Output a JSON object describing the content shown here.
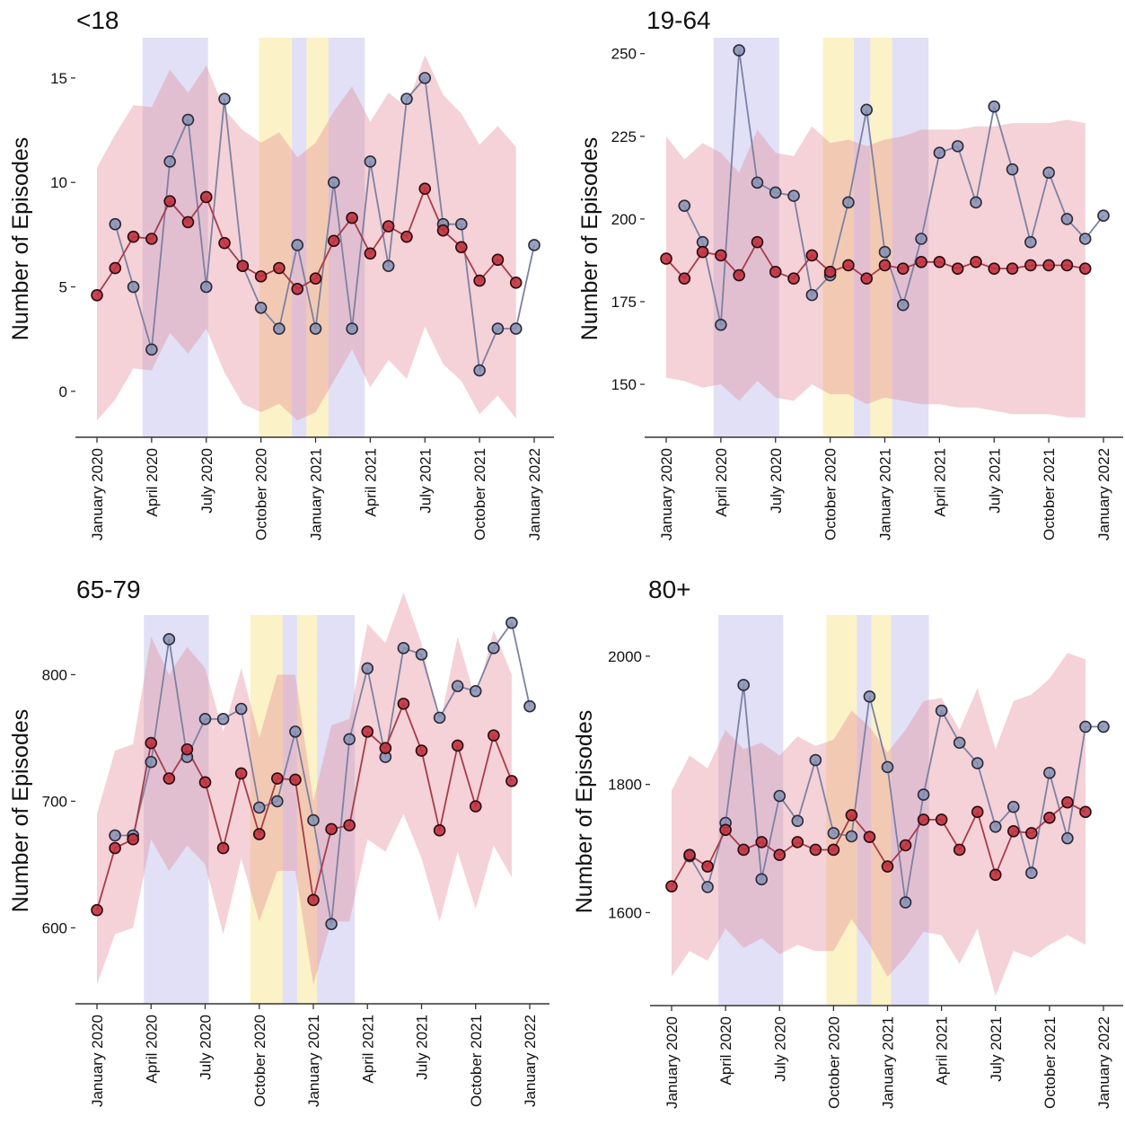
{
  "colors": {
    "lockdown_shade": "#c9c6ef",
    "intermediate_shade": "#fbedb4",
    "ribbon": "#e38a97",
    "observed_line": "#7d81a3",
    "observed_point": "#8691b3",
    "expected_line": "#a83b4a",
    "expected_point": "#c0323f"
  },
  "chart_data": [
    {
      "type": "line",
      "title": "<18",
      "ylabel": "Number of Episodes",
      "xlabel": "",
      "ylim": [
        -2.2,
        16.8
      ],
      "yticks": [
        0,
        5,
        10,
        15
      ],
      "x_tick_labels": [
        "January 2020",
        "April 2020",
        "July 2020",
        "October 2020",
        "January 2021",
        "April 2021",
        "July 2021",
        "October 2021",
        "January 2022"
      ],
      "x_tick_months": [
        0,
        3,
        6,
        9,
        12,
        15,
        18,
        21,
        24
      ],
      "shaded_periods": [
        {
          "kind": "lockdown",
          "start": 2.5,
          "end": 6.1
        },
        {
          "kind": "intermediate",
          "start": 8.9,
          "end": 10.7
        },
        {
          "kind": "lockdown",
          "start": 10.7,
          "end": 11.5
        },
        {
          "kind": "intermediate",
          "start": 11.5,
          "end": 12.7
        },
        {
          "kind": "lockdown",
          "start": 12.7,
          "end": 14.7
        }
      ],
      "grid": false,
      "legend": "none",
      "series": [
        {
          "role": "observed",
          "x": [
            1,
            2,
            3,
            4,
            5,
            6,
            7,
            8,
            9,
            10,
            11,
            12,
            13,
            14,
            15,
            16,
            17,
            18,
            19,
            20,
            21,
            22,
            23,
            24
          ],
          "values": [
            8,
            5,
            2,
            11,
            13,
            5,
            14,
            6,
            4,
            3,
            7,
            3,
            10,
            3,
            11,
            6,
            14,
            15,
            8,
            8,
            1,
            3,
            3,
            7
          ]
        },
        {
          "role": "expected",
          "x": [
            0,
            1,
            2,
            3,
            4,
            5,
            6,
            7,
            8,
            9,
            10,
            11,
            12,
            13,
            14,
            15,
            16,
            17,
            18,
            19,
            20,
            21,
            22,
            23
          ],
          "values": [
            4.6,
            5.9,
            7.4,
            7.3,
            9.1,
            8.1,
            9.3,
            7.1,
            6.0,
            5.5,
            5.9,
            4.9,
            5.4,
            7.2,
            8.3,
            6.6,
            7.9,
            7.4,
            9.7,
            7.7,
            6.9,
            5.3,
            6.3,
            5.2
          ]
        }
      ],
      "ribbon": {
        "x": [
          0,
          1,
          2,
          3,
          4,
          5,
          6,
          7,
          8,
          9,
          10,
          11,
          12,
          13,
          14,
          15,
          16,
          17,
          18,
          19,
          20,
          21,
          22,
          23
        ],
        "lower": [
          -1.4,
          -0.4,
          1.1,
          1.0,
          2.8,
          1.8,
          3.0,
          0.9,
          -0.6,
          -1.0,
          -0.6,
          -1.4,
          -1.0,
          0.5,
          2.0,
          0.2,
          1.5,
          0.6,
          3.1,
          1.3,
          0.5,
          -1.1,
          -0.2,
          -1.3
        ],
        "upper": [
          10.7,
          12.3,
          13.7,
          13.6,
          15.4,
          14.3,
          15.6,
          13.5,
          12.5,
          11.9,
          12.4,
          11.2,
          11.9,
          13.4,
          14.6,
          12.9,
          14.3,
          13.6,
          16.1,
          14.2,
          13.3,
          11.8,
          12.7,
          11.7
        ]
      }
    },
    {
      "type": "line",
      "title": "19-64",
      "ylabel": "Number of Episodes",
      "xlabel": "",
      "ylim": [
        134,
        254
      ],
      "yticks": [
        150,
        175,
        200,
        225,
        250
      ],
      "x_tick_labels": [
        "January 2020",
        "April 2020",
        "July 2020",
        "October 2020",
        "January 2021",
        "April 2021",
        "July 2021",
        "October 2021",
        "January 2022"
      ],
      "x_tick_months": [
        0,
        3,
        6,
        9,
        12,
        15,
        18,
        21,
        24
      ],
      "shaded_periods": [
        {
          "kind": "lockdown",
          "start": 2.6,
          "end": 6.2
        },
        {
          "kind": "intermediate",
          "start": 8.6,
          "end": 10.3
        },
        {
          "kind": "lockdown",
          "start": 10.3,
          "end": 11.2
        },
        {
          "kind": "intermediate",
          "start": 11.2,
          "end": 12.4
        },
        {
          "kind": "lockdown",
          "start": 12.4,
          "end": 14.4
        }
      ],
      "grid": false,
      "legend": "none",
      "series": [
        {
          "role": "observed",
          "x": [
            1,
            2,
            3,
            4,
            5,
            6,
            7,
            8,
            9,
            10,
            11,
            12,
            13,
            14,
            15,
            16,
            17,
            18,
            19,
            20,
            21,
            22,
            23,
            24
          ],
          "values": [
            204,
            193,
            168,
            251,
            211,
            208,
            207,
            177,
            183,
            205,
            233,
            190,
            174,
            194,
            220,
            222,
            205,
            234,
            215,
            193,
            214,
            200,
            194,
            201
          ]
        },
        {
          "role": "expected",
          "x": [
            0,
            1,
            2,
            3,
            4,
            5,
            6,
            7,
            8,
            9,
            10,
            11,
            12,
            13,
            14,
            15,
            16,
            17,
            18,
            19,
            20,
            21,
            22,
            23
          ],
          "values": [
            188,
            182,
            190,
            189,
            183,
            193,
            184,
            182,
            189,
            184,
            186,
            182,
            186,
            185,
            187,
            187,
            185,
            187,
            185,
            185,
            186,
            186,
            186,
            185
          ]
        }
      ],
      "ribbon": {
        "x": [
          0,
          1,
          2,
          3,
          4,
          5,
          6,
          7,
          8,
          9,
          10,
          11,
          12,
          13,
          14,
          15,
          16,
          17,
          18,
          19,
          20,
          21,
          22,
          23
        ],
        "lower": [
          152,
          151,
          149,
          150,
          145,
          151,
          146,
          145,
          150,
          147,
          147,
          144,
          146,
          145,
          144,
          144,
          143,
          143,
          142,
          141,
          141,
          141,
          140,
          140
        ],
        "upper": [
          225,
          218,
          223,
          220,
          214,
          227,
          220,
          219,
          228,
          223,
          224,
          222,
          224,
          225,
          227,
          227,
          227,
          228,
          228,
          229,
          229,
          229,
          230,
          229
        ]
      }
    },
    {
      "type": "line",
      "title": "65-79",
      "ylabel": "Number of Episodes",
      "xlabel": "",
      "ylim": [
        540,
        845
      ],
      "yticks": [
        600,
        700,
        800
      ],
      "x_tick_labels": [
        "January 2020",
        "April 2020",
        "July 2020",
        "October 2020",
        "January 2021",
        "April 2021",
        "July 2021",
        "October 2021",
        "January 2022"
      ],
      "x_tick_months": [
        0,
        3,
        6,
        9,
        12,
        15,
        18,
        21,
        24
      ],
      "shaded_periods": [
        {
          "kind": "lockdown",
          "start": 2.6,
          "end": 6.2
        },
        {
          "kind": "intermediate",
          "start": 8.5,
          "end": 10.3
        },
        {
          "kind": "lockdown",
          "start": 10.3,
          "end": 11.1
        },
        {
          "kind": "intermediate",
          "start": 11.1,
          "end": 12.2
        },
        {
          "kind": "lockdown",
          "start": 12.2,
          "end": 14.3
        }
      ],
      "grid": false,
      "legend": "none",
      "series": [
        {
          "role": "observed",
          "x": [
            1,
            2,
            3,
            4,
            5,
            6,
            7,
            8,
            9,
            10,
            11,
            12,
            13,
            14,
            15,
            16,
            17,
            18,
            19,
            20,
            21,
            22,
            23,
            24
          ],
          "values": [
            673,
            673,
            731,
            828,
            735,
            765,
            765,
            773,
            695,
            700,
            755,
            685,
            603,
            749,
            805,
            735,
            821,
            816,
            766,
            791,
            787,
            821,
            841,
            775
          ]
        },
        {
          "role": "expected",
          "x": [
            0,
            1,
            2,
            3,
            4,
            5,
            6,
            7,
            8,
            9,
            10,
            11,
            12,
            13,
            14,
            15,
            16,
            17,
            18,
            19,
            20,
            21,
            22,
            23
          ],
          "values": [
            614,
            663,
            670,
            746,
            718,
            741,
            715,
            663,
            722,
            674,
            718,
            717,
            622,
            678,
            681,
            755,
            742,
            777,
            740,
            677,
            744,
            696,
            752,
            716
          ]
        }
      ],
      "ribbon": {
        "x": [
          0,
          1,
          2,
          3,
          4,
          5,
          6,
          7,
          8,
          9,
          10,
          11,
          12,
          13,
          14,
          15,
          16,
          17,
          18,
          19,
          20,
          21,
          22,
          23
        ],
        "lower": [
          555,
          595,
          600,
          670,
          645,
          665,
          650,
          595,
          655,
          605,
          645,
          645,
          555,
          605,
          605,
          670,
          660,
          690,
          655,
          605,
          660,
          615,
          665,
          640
        ],
        "upper": [
          690,
          740,
          745,
          830,
          800,
          822,
          805,
          755,
          805,
          750,
          800,
          800,
          700,
          760,
          765,
          840,
          825,
          865,
          825,
          760,
          830,
          780,
          835,
          800
        ]
      }
    },
    {
      "type": "line",
      "title": "80+",
      "ylabel": "Number of Episodes",
      "xlabel": "",
      "ylim": [
        1455,
        2060
      ],
      "yticks": [
        1600,
        1800,
        2000
      ],
      "x_tick_labels": [
        "January 2020",
        "April 2020",
        "July 2020",
        "October 2020",
        "January 2021",
        "April 2021",
        "July 2021",
        "October 2021",
        "January 2022"
      ],
      "x_tick_months": [
        0,
        3,
        6,
        9,
        12,
        15,
        18,
        21,
        24
      ],
      "shaded_periods": [
        {
          "kind": "lockdown",
          "start": 2.6,
          "end": 6.2
        },
        {
          "kind": "intermediate",
          "start": 8.6,
          "end": 10.3
        },
        {
          "kind": "lockdown",
          "start": 10.3,
          "end": 11.1
        },
        {
          "kind": "intermediate",
          "start": 11.1,
          "end": 12.2
        },
        {
          "kind": "lockdown",
          "start": 12.2,
          "end": 14.3
        }
      ],
      "grid": false,
      "legend": "none",
      "series": [
        {
          "role": "observed",
          "x": [
            1,
            2,
            3,
            4,
            5,
            6,
            7,
            8,
            9,
            10,
            11,
            12,
            13,
            14,
            15,
            16,
            17,
            18,
            19,
            20,
            21,
            22,
            23,
            24
          ],
          "values": [
            1688,
            1640,
            1740,
            1955,
            1652,
            1782,
            1743,
            1838,
            1724,
            1719,
            1937,
            1827,
            1616,
            1784,
            1915,
            1865,
            1833,
            1734,
            1765,
            1662,
            1818,
            1716,
            1890,
            1890
          ]
        },
        {
          "role": "expected",
          "x": [
            0,
            1,
            2,
            3,
            4,
            5,
            6,
            7,
            8,
            9,
            10,
            11,
            12,
            13,
            14,
            15,
            16,
            17,
            18,
            19,
            20,
            21,
            22,
            23
          ],
          "values": [
            1641,
            1690,
            1672,
            1729,
            1698,
            1710,
            1690,
            1710,
            1698,
            1698,
            1752,
            1718,
            1672,
            1705,
            1745,
            1745,
            1698,
            1757,
            1659,
            1727,
            1724,
            1748,
            1772,
            1757
          ]
        }
      ],
      "ribbon": {
        "x": [
          0,
          1,
          2,
          3,
          4,
          5,
          6,
          7,
          8,
          9,
          10,
          11,
          12,
          13,
          14,
          15,
          16,
          17,
          18,
          19,
          20,
          21,
          22,
          23
        ],
        "lower": [
          1500,
          1540,
          1525,
          1575,
          1545,
          1560,
          1535,
          1550,
          1540,
          1540,
          1590,
          1550,
          1500,
          1530,
          1570,
          1565,
          1520,
          1575,
          1470,
          1540,
          1530,
          1550,
          1565,
          1550
        ],
        "upper": [
          1790,
          1845,
          1825,
          1885,
          1855,
          1865,
          1845,
          1875,
          1860,
          1870,
          1915,
          1890,
          1850,
          1885,
          1930,
          1935,
          1885,
          1950,
          1855,
          1930,
          1940,
          1965,
          2005,
          1995
        ]
      }
    }
  ]
}
